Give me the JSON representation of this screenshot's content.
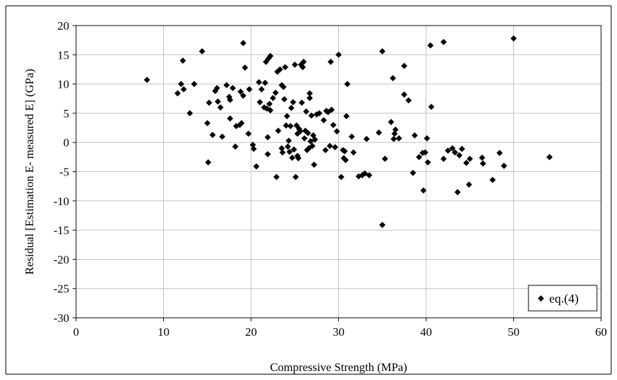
{
  "chart_data": {
    "type": "scatter",
    "xlabel": "Compressive Strength (MPa)",
    "ylabel": "Residual [Estimation E- measured E] (GPa)",
    "xlim": [
      0,
      60
    ],
    "ylim": [
      -30,
      20
    ],
    "xticks": [
      0,
      10,
      20,
      30,
      40,
      50,
      60
    ],
    "yticks": [
      -30,
      -25,
      -20,
      -15,
      -10,
      -5,
      0,
      5,
      10,
      15,
      20
    ],
    "grid": true,
    "legend_position": "bottom-right",
    "series": [
      {
        "name": "eq.(4)",
        "marker": "diamond",
        "color": "#000000",
        "points": [
          [
            8.1,
            10.7
          ],
          [
            11.6,
            8.4
          ],
          [
            12.0,
            10.0
          ],
          [
            12.2,
            14.0
          ],
          [
            12.3,
            9.1
          ],
          [
            13.0,
            5.0
          ],
          [
            13.5,
            10.0
          ],
          [
            14.4,
            15.6
          ],
          [
            15.0,
            3.3
          ],
          [
            15.2,
            6.8
          ],
          [
            15.1,
            -3.4
          ],
          [
            15.6,
            1.3
          ],
          [
            15.9,
            8.8
          ],
          [
            16.1,
            9.3
          ],
          [
            16.2,
            7.0
          ],
          [
            16.5,
            6.0
          ],
          [
            16.7,
            1.0
          ],
          [
            17.2,
            9.8
          ],
          [
            17.5,
            7.8
          ],
          [
            17.6,
            7.3
          ],
          [
            17.6,
            4.1
          ],
          [
            17.9,
            9.3
          ],
          [
            18.2,
            -0.7
          ],
          [
            18.3,
            2.8
          ],
          [
            18.7,
            3.0
          ],
          [
            18.8,
            8.7
          ],
          [
            18.9,
            3.3
          ],
          [
            19.1,
            8.0
          ],
          [
            19.1,
            17.0
          ],
          [
            19.3,
            12.8
          ],
          [
            19.7,
            1.5
          ],
          [
            19.8,
            9.1
          ],
          [
            20.2,
            -0.4
          ],
          [
            20.3,
            -1.1
          ],
          [
            20.6,
            -4.1
          ],
          [
            20.9,
            10.3
          ],
          [
            21.0,
            6.9
          ],
          [
            21.2,
            9.1
          ],
          [
            21.5,
            6.0
          ],
          [
            21.6,
            10.2
          ],
          [
            21.7,
            13.8
          ],
          [
            21.8,
            5.8
          ],
          [
            21.9,
            0.9
          ],
          [
            21.9,
            -2.0
          ],
          [
            22.0,
            14.4
          ],
          [
            22.1,
            6.6
          ],
          [
            22.2,
            14.8
          ],
          [
            22.2,
            5.5
          ],
          [
            22.5,
            7.6
          ],
          [
            22.8,
            8.5
          ],
          [
            22.9,
            -5.9
          ],
          [
            23.0,
            12.1
          ],
          [
            23.1,
            2.0
          ],
          [
            23.3,
            12.5
          ],
          [
            23.5,
            -1.0
          ],
          [
            23.5,
            9.8
          ],
          [
            23.6,
            -1.7
          ],
          [
            23.7,
            9.5
          ],
          [
            23.8,
            7.4
          ],
          [
            23.9,
            12.9
          ],
          [
            24.0,
            2.9
          ],
          [
            24.1,
            4.5
          ],
          [
            24.2,
            -0.7
          ],
          [
            24.3,
            0.3
          ],
          [
            24.4,
            -1.6
          ],
          [
            24.5,
            2.8
          ],
          [
            24.6,
            5.9
          ],
          [
            24.7,
            -2.6
          ],
          [
            24.8,
            6.9
          ],
          [
            24.9,
            -1.2
          ],
          [
            25.0,
            13.3
          ],
          [
            25.1,
            -5.9
          ],
          [
            25.2,
            2.9
          ],
          [
            25.3,
            -2.3
          ],
          [
            25.3,
            1.5
          ],
          [
            25.4,
            -2.7
          ],
          [
            25.5,
            2.3
          ],
          [
            25.6,
            1.9
          ],
          [
            25.7,
            13.3
          ],
          [
            25.8,
            6.8
          ],
          [
            25.9,
            12.9
          ],
          [
            26.0,
            13.8
          ],
          [
            26.1,
            0.7
          ],
          [
            26.2,
            2.0
          ],
          [
            26.3,
            5.3
          ],
          [
            26.4,
            -1.3
          ],
          [
            26.5,
            1.6
          ],
          [
            26.6,
            -1.0
          ],
          [
            26.7,
            8.4
          ],
          [
            26.7,
            7.6
          ],
          [
            26.8,
            0.2
          ],
          [
            26.9,
            4.6
          ],
          [
            27.0,
            -0.6
          ],
          [
            27.1,
            1.2
          ],
          [
            27.2,
            -3.8
          ],
          [
            27.3,
            0.5
          ],
          [
            27.5,
            4.8
          ],
          [
            27.8,
            5.0
          ],
          [
            28.3,
            3.8
          ],
          [
            28.5,
            -1.3
          ],
          [
            28.6,
            5.4
          ],
          [
            28.8,
            5.2
          ],
          [
            29.0,
            -0.6
          ],
          [
            29.1,
            13.8
          ],
          [
            29.2,
            5.6
          ],
          [
            29.4,
            3.0
          ],
          [
            29.6,
            -0.8
          ],
          [
            29.8,
            1.9
          ],
          [
            30.0,
            15.0
          ],
          [
            30.3,
            -5.9
          ],
          [
            30.5,
            -1.3
          ],
          [
            30.6,
            -2.7
          ],
          [
            30.7,
            -1.5
          ],
          [
            30.8,
            -3.0
          ],
          [
            30.9,
            4.5
          ],
          [
            31.0,
            10.0
          ],
          [
            31.5,
            1.0
          ],
          [
            31.7,
            -1.7
          ],
          [
            32.3,
            -5.8
          ],
          [
            32.7,
            -5.6
          ],
          [
            33.0,
            -5.3
          ],
          [
            33.2,
            0.6
          ],
          [
            33.5,
            -5.6
          ],
          [
            34.6,
            1.7
          ],
          [
            35.0,
            15.6
          ],
          [
            35.0,
            -14.1
          ],
          [
            35.3,
            -2.8
          ],
          [
            36.0,
            3.5
          ],
          [
            36.2,
            11.0
          ],
          [
            36.3,
            0.6
          ],
          [
            36.4,
            1.5
          ],
          [
            36.5,
            2.2
          ],
          [
            36.9,
            0.7
          ],
          [
            37.5,
            13.1
          ],
          [
            37.5,
            8.2
          ],
          [
            38.0,
            7.2
          ],
          [
            38.5,
            -5.2
          ],
          [
            38.7,
            1.2
          ],
          [
            39.2,
            -2.5
          ],
          [
            39.6,
            -1.8
          ],
          [
            39.7,
            -8.2
          ],
          [
            39.9,
            -1.7
          ],
          [
            40.1,
            0.7
          ],
          [
            40.2,
            -3.4
          ],
          [
            40.5,
            16.6
          ],
          [
            40.6,
            6.1
          ],
          [
            42.0,
            17.2
          ],
          [
            42.0,
            -2.8
          ],
          [
            42.5,
            -1.4
          ],
          [
            43.0,
            -1.0
          ],
          [
            43.3,
            -1.7
          ],
          [
            43.6,
            -8.5
          ],
          [
            43.8,
            -2.2
          ],
          [
            44.1,
            -1.1
          ],
          [
            44.6,
            -3.5
          ],
          [
            44.9,
            -7.2
          ],
          [
            45.0,
            -2.8
          ],
          [
            46.4,
            -2.6
          ],
          [
            46.5,
            -3.6
          ],
          [
            47.6,
            -6.4
          ],
          [
            48.4,
            -1.8
          ],
          [
            48.9,
            -4.0
          ],
          [
            50.0,
            17.8
          ],
          [
            54.1,
            -2.5
          ]
        ]
      }
    ]
  }
}
